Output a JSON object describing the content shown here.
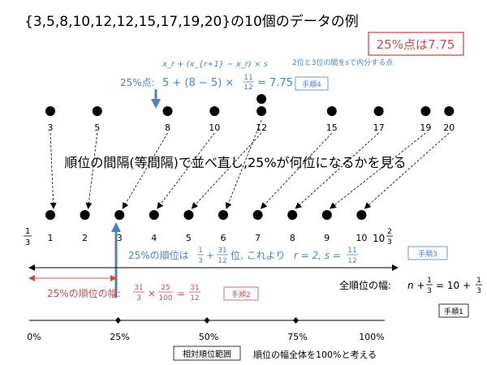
{
  "title": "{3,5,8,10,12,12,15,17,19,20}の10個のデータの例",
  "result_box": "25%点は7.75",
  "data_values": [
    "3",
    "5",
    "8",
    "10",
    "12",
    "12",
    "15",
    "17",
    "19",
    "20"
  ],
  "rank_numbers": [
    "1",
    "2",
    "3",
    "4",
    "5",
    "6",
    "7",
    "8",
    "9",
    "10"
  ],
  "rank_start": {
    "top": "1",
    "bottom": "3"
  },
  "rank_end": {
    "whole": "10",
    "top": "2",
    "bottom": "3"
  },
  "formula_general": "x_r + (x_{r+1} − x_r) × s",
  "formula_note": "2位と3位の間をsで内分する点",
  "step4_calc": {
    "label": "25%点:",
    "expr_left": "5 + (8 − 5) ×",
    "frac_top": "11",
    "frac_bottom": "12",
    "expr_right": "= 7.75"
  },
  "step4_tag": "手順4",
  "middle_text": "順位の間隔(等間隔)で並べ直し,25%が何位になるかを見る",
  "step3_calc": {
    "prefix": "25%の順位は",
    "f1_top": "1",
    "f1_bottom": "3",
    "plus": "+",
    "f2_top": "31",
    "f2_bottom": "12",
    "mid": "位, これより",
    "r_expr": "r = 2, s =",
    "f3_top": "11",
    "f3_bottom": "12"
  },
  "step3_tag": "手順3",
  "step1_calc": {
    "label": "全順位の幅:",
    "expr": "n +",
    "f1_top": "1",
    "f1_bottom": "3",
    "eq": "= 10 +",
    "f2_top": "1",
    "f2_bottom": "3"
  },
  "step1_tag": "手順1",
  "step2_calc": {
    "label": "25%の順位の幅:",
    "f1_top": "31",
    "f1_bottom": "3",
    "times": "×",
    "f2_top": "25",
    "f2_bottom": "100",
    "eq": "=",
    "f3_top": "31",
    "f3_bottom": "12"
  },
  "step2_tag": "手順2",
  "percent_ticks": [
    "0%",
    "25%",
    "50%",
    "75%",
    "100%"
  ],
  "percent_values": [
    0,
    25,
    50,
    75,
    100
  ],
  "scale_label": "相対順位範囲",
  "scale_caption": "順位の幅全体を100%と考える",
  "colors": {
    "blue": "#4f81bd",
    "red": "#c0504d",
    "black": "#000000"
  }
}
